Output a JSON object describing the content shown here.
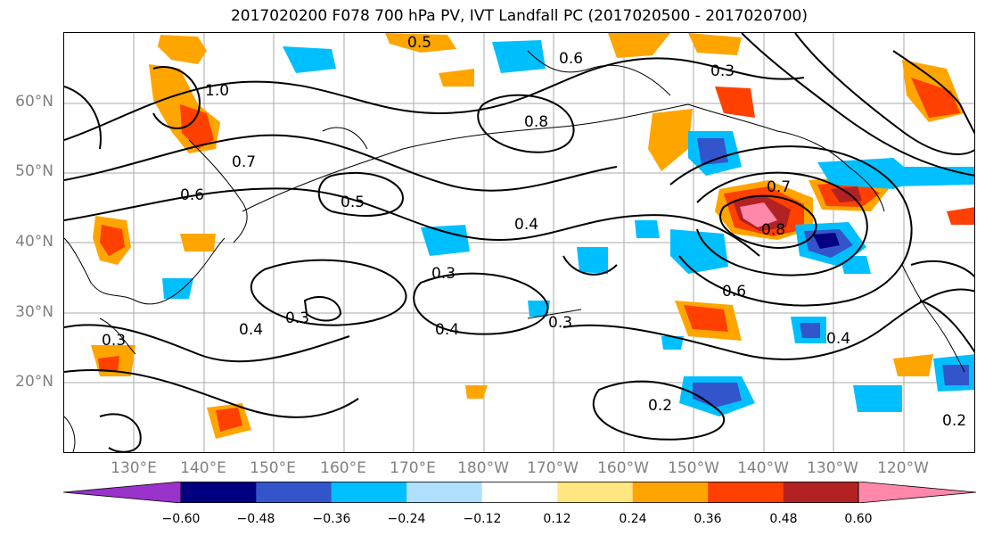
{
  "title": "2017020200 F078 700 hPa PV, IVT Landfall PC (2017020500 - 2017020700)",
  "lat_labels": [
    "60°N",
    "50°N",
    "40°N",
    "30°N",
    "20°N"
  ],
  "lon_labels": [
    "130°E",
    "140°E",
    "150°E",
    "160°E",
    "170°E",
    "180°W",
    "170°W",
    "160°W",
    "150°W",
    "140°W",
    "130°W",
    "120°W"
  ],
  "colorbar": {
    "ticks": [
      "−0.60",
      "−0.48",
      "−0.36",
      "−0.24",
      "−0.12",
      "0.12",
      "0.24",
      "0.36",
      "0.48",
      "0.60"
    ],
    "colors": [
      "#9933cc",
      "#000080",
      "#3355cc",
      "#00bfff",
      "#b0e0ff",
      "#ffffff",
      "#ffe680",
      "#ffa500",
      "#ff4000",
      "#b22222",
      "#ff88aa"
    ]
  },
  "contour_labels": [
    "0.5",
    "0.6",
    "0.3",
    "1.0",
    "0.8",
    "0.7",
    "0.6",
    "0.5",
    "0.4",
    "0.3",
    "0.4",
    "0.3",
    "0.4",
    "0.3",
    "0.2",
    "0.8",
    "0.7",
    "0.6",
    "0.4",
    "0.3",
    "0.2"
  ]
}
